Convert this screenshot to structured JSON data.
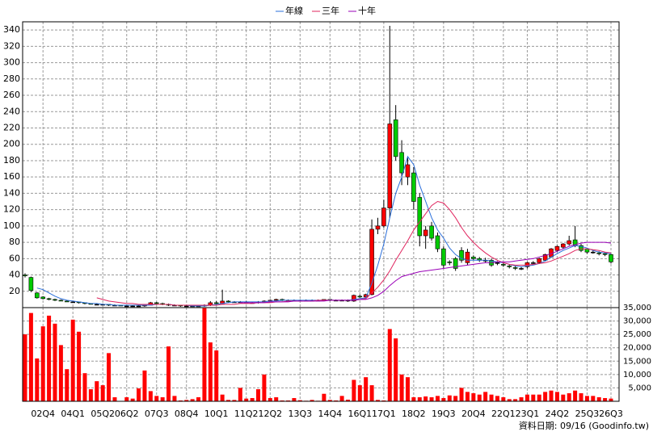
{
  "chart_data": {
    "type": "candlestick",
    "legend": "top",
    "grid": true,
    "up_color": "#ff0000",
    "down_color": "#00cc00",
    "flat_color": "#000000",
    "footer": "資料日期: 09/16 (Goodinfo.tw)",
    "categories": [
      null,
      null,
      null,
      "02Q4",
      null,
      null,
      null,
      null,
      "04Q1",
      null,
      null,
      null,
      null,
      "05Q2",
      null,
      null,
      null,
      "06Q2",
      null,
      null,
      null,
      null,
      "07Q3",
      null,
      null,
      null,
      null,
      "08Q4",
      null,
      null,
      null,
      null,
      "10Q1",
      null,
      null,
      null,
      null,
      "11Q2",
      null,
      null,
      null,
      "12Q2",
      null,
      null,
      null,
      null,
      "13Q3",
      null,
      null,
      null,
      null,
      "14Q4",
      null,
      null,
      null,
      null,
      "16Q1",
      null,
      null,
      null,
      "17Q1",
      null,
      null,
      null,
      null,
      "18Q2",
      null,
      null,
      null,
      null,
      "19Q3",
      null,
      null,
      null,
      null,
      "20Q4",
      null,
      null,
      null,
      null,
      "22Q1",
      null,
      null,
      null,
      "23Q1",
      null,
      null,
      null,
      null,
      "24Q2",
      null,
      null,
      null,
      null,
      "25Q3",
      null,
      null,
      null,
      "26Q3"
    ],
    "open": [
      40,
      37,
      18,
      13,
      11,
      10,
      9,
      8,
      7,
      7,
      6,
      5,
      4,
      4,
      4,
      3,
      3,
      2,
      2,
      2,
      2,
      3,
      6,
      5,
      4,
      3,
      3,
      2,
      2,
      2,
      2,
      3,
      6,
      5,
      8,
      7,
      7,
      7,
      6,
      6,
      7,
      8,
      9,
      10,
      9,
      9,
      9,
      9,
      9,
      9,
      9,
      10,
      9,
      9,
      9,
      8,
      14,
      13,
      16,
      96,
      100,
      122,
      230,
      190,
      160,
      165,
      135,
      88,
      100,
      88,
      72,
      56,
      60,
      70,
      55,
      62,
      60,
      58,
      58,
      55,
      53,
      51,
      49,
      48,
      50,
      55,
      55,
      58,
      62,
      70,
      74,
      78,
      83,
      76,
      72,
      68,
      67,
      66,
      65
    ],
    "high": [
      42,
      38,
      19,
      14,
      12,
      11,
      10,
      9,
      8,
      7,
      6,
      5,
      5,
      5,
      4,
      4,
      3,
      3,
      3,
      3,
      4,
      7,
      7,
      6,
      5,
      4,
      3,
      3,
      3,
      3,
      4,
      8,
      8,
      22,
      9,
      8,
      8,
      8,
      7,
      8,
      9,
      10,
      11,
      11,
      10,
      10,
      10,
      10,
      10,
      10,
      10,
      10,
      10,
      10,
      10,
      16,
      16,
      17,
      108,
      110,
      132,
      345,
      248,
      205,
      185,
      172,
      140,
      100,
      105,
      92,
      75,
      58,
      62,
      74,
      72,
      64,
      62,
      61,
      60,
      57,
      55,
      53,
      51,
      50,
      56,
      57,
      61,
      66,
      73,
      76,
      79,
      88,
      100,
      78,
      73,
      70,
      69,
      68,
      66
    ],
    "low": [
      37,
      19,
      11,
      10,
      9,
      8,
      8,
      7,
      6,
      5,
      4,
      4,
      3,
      3,
      2,
      2,
      2,
      1,
      1,
      1,
      1,
      3,
      4,
      3,
      2,
      2,
      1,
      1,
      1,
      1,
      1,
      2,
      4,
      4,
      6,
      6,
      6,
      5,
      5,
      5,
      6,
      7,
      8,
      8,
      8,
      8,
      8,
      8,
      8,
      8,
      8,
      8,
      8,
      8,
      7,
      7,
      12,
      12,
      15,
      90,
      98,
      110,
      180,
      150,
      150,
      120,
      75,
      72,
      82,
      68,
      48,
      52,
      45,
      55,
      52,
      58,
      56,
      55,
      50,
      52,
      50,
      48,
      46,
      46,
      48,
      53,
      54,
      57,
      61,
      68,
      72,
      76,
      74,
      68,
      66,
      66,
      64,
      63,
      54
    ],
    "close": [
      39,
      21,
      12,
      11,
      10,
      9,
      8,
      7,
      7,
      6,
      5,
      4,
      4,
      4,
      3,
      3,
      2,
      2,
      2,
      2,
      3,
      6,
      5,
      4,
      3,
      3,
      2,
      2,
      2,
      2,
      3,
      6,
      5,
      8,
      7,
      7,
      7,
      6,
      6,
      7,
      8,
      9,
      10,
      9,
      9,
      9,
      9,
      9,
      9,
      9,
      10,
      9,
      9,
      9,
      8,
      15,
      13,
      16,
      96,
      100,
      122,
      225,
      185,
      165,
      175,
      130,
      88,
      95,
      85,
      72,
      52,
      55,
      48,
      58,
      68,
      60,
      58,
      58,
      52,
      55,
      52,
      50,
      48,
      48,
      55,
      55,
      60,
      65,
      72,
      75,
      78,
      82,
      76,
      70,
      68,
      68,
      66,
      65,
      56
    ],
    "ylim": [
      0,
      350
    ],
    "yticks": [
      20,
      40,
      60,
      80,
      100,
      120,
      140,
      160,
      180,
      200,
      220,
      240,
      260,
      280,
      300,
      320,
      340
    ],
    "series": [
      {
        "name": "年線",
        "color": "#2a6fdb",
        "values": [
          null,
          null,
          24,
          22,
          18,
          14,
          11,
          9,
          8,
          7,
          6,
          5,
          5,
          4,
          4,
          3,
          3,
          3,
          3,
          3,
          3,
          3,
          4,
          4,
          4,
          3,
          3,
          3,
          2,
          2,
          2,
          3,
          4,
          5,
          6,
          7,
          7,
          7,
          7,
          7,
          7,
          8,
          8,
          9,
          9,
          9,
          9,
          9,
          9,
          9,
          9,
          9,
          9,
          9,
          9,
          10,
          11,
          12,
          30,
          52,
          78,
          110,
          140,
          160,
          185,
          175,
          150,
          130,
          110,
          95,
          85,
          73,
          65,
          60,
          58,
          58,
          58,
          58,
          57,
          56,
          55,
          53,
          51,
          50,
          51,
          52,
          54,
          57,
          62,
          66,
          70,
          73,
          76,
          75,
          73,
          70,
          68,
          67,
          66
        ]
      },
      {
        "name": "三年",
        "color": "#e0245e",
        "values": [
          null,
          null,
          null,
          null,
          null,
          null,
          null,
          null,
          null,
          null,
          null,
          null,
          12,
          10,
          8,
          7,
          6,
          5,
          5,
          4,
          4,
          4,
          4,
          4,
          4,
          3,
          3,
          3,
          3,
          3,
          3,
          3,
          3,
          4,
          4,
          4,
          5,
          5,
          5,
          6,
          6,
          6,
          7,
          7,
          8,
          8,
          8,
          8,
          8,
          9,
          9,
          9,
          9,
          9,
          9,
          9,
          10,
          11,
          18,
          25,
          34,
          45,
          58,
          70,
          82,
          95,
          105,
          115,
          125,
          130,
          128,
          120,
          110,
          98,
          88,
          80,
          73,
          67,
          62,
          58,
          55,
          53,
          52,
          52,
          52,
          53,
          54,
          55,
          57,
          60,
          63,
          66,
          70,
          72,
          72,
          71,
          70,
          68,
          67
        ]
      },
      {
        "name": "十年",
        "color": "#9a00b8",
        "values": [
          null,
          null,
          null,
          null,
          null,
          null,
          null,
          null,
          null,
          null,
          null,
          null,
          null,
          null,
          null,
          null,
          null,
          null,
          null,
          null,
          null,
          null,
          null,
          null,
          null,
          null,
          null,
          null,
          null,
          null,
          null,
          null,
          null,
          null,
          null,
          null,
          6,
          6,
          6,
          6,
          6,
          7,
          7,
          7,
          7,
          8,
          8,
          8,
          8,
          8,
          8,
          9,
          9,
          9,
          9,
          9,
          10,
          10,
          12,
          15,
          20,
          27,
          33,
          38,
          40,
          42,
          44,
          45,
          46,
          47,
          48,
          49,
          50,
          51,
          52,
          53,
          54,
          55,
          55,
          56,
          56,
          56,
          57,
          58,
          59,
          60,
          62,
          64,
          66,
          69,
          72,
          75,
          77,
          79,
          80,
          80,
          80,
          80,
          79
        ]
      }
    ],
    "volume": {
      "color": "#ff0000",
      "values": [
        25000,
        33000,
        16000,
        28000,
        32000,
        29000,
        21000,
        12000,
        30500,
        26000,
        10500,
        4500,
        7500,
        6000,
        18000,
        1500,
        0,
        1500,
        1000,
        4800,
        11500,
        3800,
        2000,
        1500,
        20500,
        2000,
        300,
        500,
        800,
        1500,
        34800,
        22000,
        19000,
        2500,
        500,
        500,
        5000,
        1000,
        1200,
        4500,
        10000,
        1200,
        1500,
        300,
        300,
        1200,
        400,
        200,
        500,
        200,
        2800,
        500,
        300,
        2000,
        600,
        8000,
        6000,
        9000,
        6000,
        500,
        300,
        27000,
        23500,
        10000,
        9000,
        1500,
        1500,
        1800,
        1500,
        2000,
        1200,
        2200,
        2000,
        5000,
        3500,
        3000,
        2500,
        3500,
        2500,
        2000,
        1500,
        800,
        800,
        1500,
        2500,
        2500,
        2500,
        3500,
        4000,
        3500,
        2500,
        3000,
        4000,
        3000,
        2000,
        2000,
        1500,
        1200,
        1000
      ],
      "ylim": [
        0,
        35000
      ],
      "yticks": [
        {
          "value": 5000,
          "label": "5,000"
        },
        {
          "value": 10000,
          "label": "10,000"
        },
        {
          "value": 15000,
          "label": "15,000"
        },
        {
          "value": 20000,
          "label": "20,000"
        },
        {
          "value": 25000,
          "label": "25,000"
        },
        {
          "value": 30000,
          "label": "30,000"
        },
        {
          "value": 35000,
          "label": "35,000"
        }
      ]
    }
  }
}
